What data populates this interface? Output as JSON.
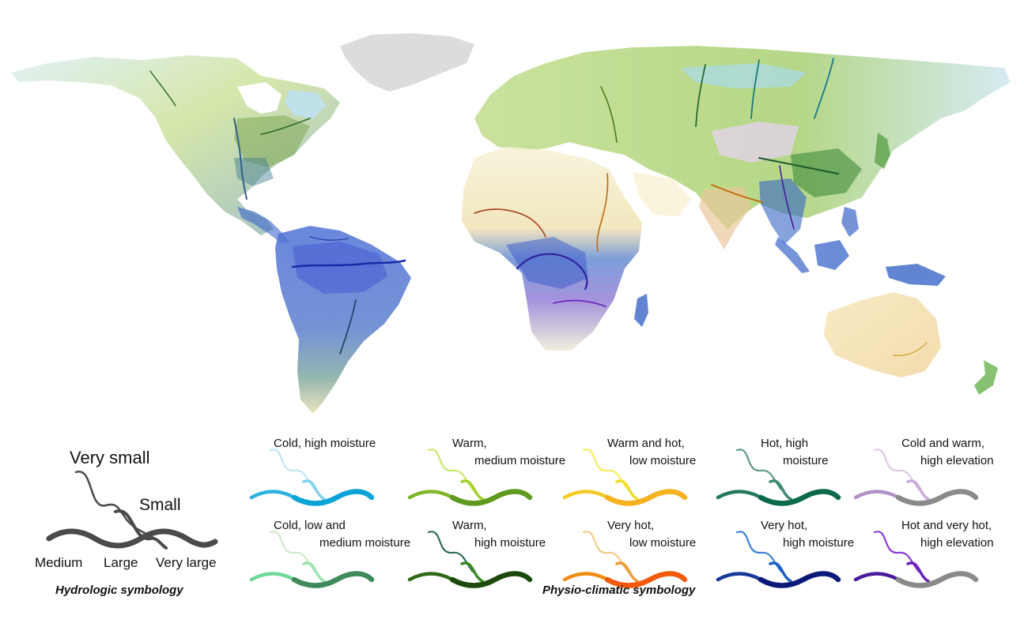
{
  "hydrologic": {
    "title": "Hydrologic symbology",
    "sizes": {
      "very_small": "Very small",
      "small": "Small",
      "medium": "Medium",
      "large": "Large",
      "very_large": "Very large"
    },
    "stroke_color": "#4a4a4a"
  },
  "physio": {
    "title": "Physio-climatic symbology",
    "classes": [
      {
        "line1": "Cold, high moisture",
        "line2": "",
        "colors": [
          "#bfe6f5",
          "#7fd1ee",
          "#2cb0e0",
          "#0aa3d8"
        ]
      },
      {
        "line1": "Warm,",
        "line2": "medium moisture",
        "colors": [
          "#c9e86b",
          "#a4cf2c",
          "#7fb62a",
          "#5e9a1e"
        ]
      },
      {
        "line1": "Warm and hot,",
        "line2": "low moisture",
        "colors": [
          "#f7ee5a",
          "#eedd2a",
          "#f2cc23",
          "#f5b11e"
        ]
      },
      {
        "line1": "Hot, high",
        "line2": "moisture",
        "colors": [
          "#5a9a86",
          "#3f8a74",
          "#227a5e",
          "#0b6a48"
        ]
      },
      {
        "line1": "Cold and warm,",
        "line2": "high elevation",
        "colors": [
          "#dfc8e6",
          "#c9a9d9",
          "#b291c8",
          "#8a8a8a"
        ]
      },
      {
        "line1": "Cold, low and",
        "line2": "medium moisture",
        "colors": [
          "#cde8c8",
          "#9ee2b4",
          "#70d99a",
          "#3f8a5a"
        ]
      },
      {
        "line1": "Warm,",
        "line2": "high moisture",
        "colors": [
          "#2f6b58",
          "#3b8a2a",
          "#2f6a18",
          "#1c4a0e"
        ]
      },
      {
        "line1": "Very hot,",
        "line2": "low moisture",
        "colors": [
          "#f5c98a",
          "#ef9b3a",
          "#f38d12",
          "#f25a0a"
        ]
      },
      {
        "line1": "Very hot,",
        "line2": "high moisture",
        "colors": [
          "#3a7fd8",
          "#1f5fc2",
          "#163a9a",
          "#0b1a7a"
        ]
      },
      {
        "line1": "Hot and very hot,",
        "line2": "high elevation",
        "colors": [
          "#8a3ad2",
          "#6a22b8",
          "#4a1a9a",
          "#8a8a8a"
        ]
      }
    ]
  }
}
